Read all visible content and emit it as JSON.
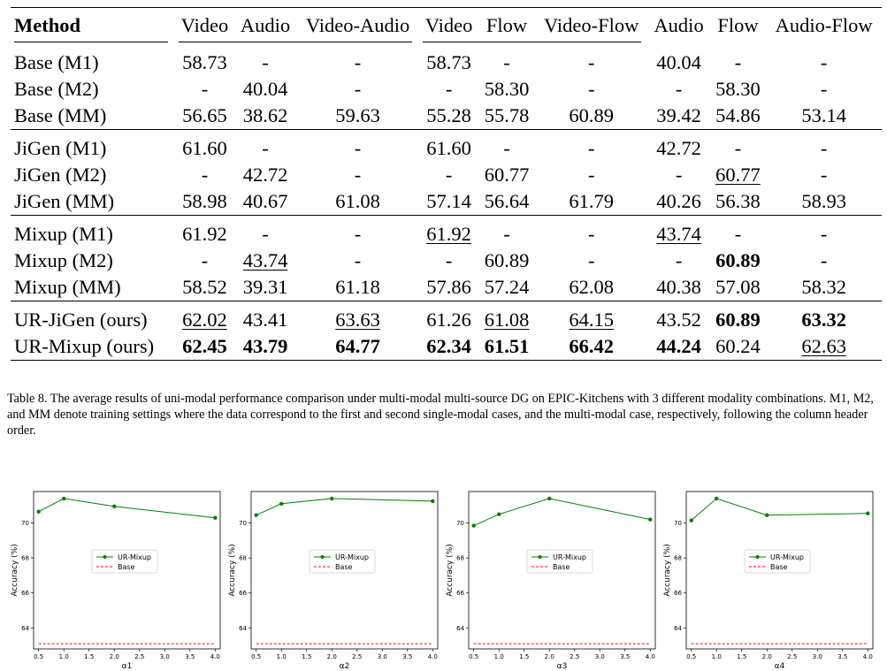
{
  "table": {
    "headers": [
      "Method",
      "Video",
      "Audio",
      "Video-Audio",
      "Video",
      "Flow",
      "Video-Flow",
      "Audio",
      "Flow",
      "Audio-Flow"
    ],
    "groups": [
      [
        {
          "method": "Base (M1)",
          "cells": [
            [
              "58.73",
              ""
            ],
            [
              "-",
              ""
            ],
            [
              "-",
              ""
            ],
            [
              "58.73",
              ""
            ],
            [
              "-",
              ""
            ],
            [
              "-",
              ""
            ],
            [
              "40.04",
              ""
            ],
            [
              "-",
              ""
            ],
            [
              "-",
              ""
            ]
          ]
        },
        {
          "method": "Base (M2)",
          "cells": [
            [
              "-",
              ""
            ],
            [
              "40.04",
              ""
            ],
            [
              "-",
              ""
            ],
            [
              "-",
              ""
            ],
            [
              "58.30",
              ""
            ],
            [
              "-",
              ""
            ],
            [
              "-",
              ""
            ],
            [
              "58.30",
              ""
            ],
            [
              "-",
              ""
            ]
          ]
        },
        {
          "method": "Base (MM)",
          "cells": [
            [
              "56.65",
              ""
            ],
            [
              "38.62",
              ""
            ],
            [
              "59.63",
              ""
            ],
            [
              "55.28",
              ""
            ],
            [
              "55.78",
              ""
            ],
            [
              "60.89",
              ""
            ],
            [
              "39.42",
              ""
            ],
            [
              "54.86",
              ""
            ],
            [
              "53.14",
              ""
            ]
          ]
        }
      ],
      [
        {
          "method": "JiGen (M1)",
          "cells": [
            [
              "61.60",
              ""
            ],
            [
              "-",
              ""
            ],
            [
              "-",
              ""
            ],
            [
              "61.60",
              ""
            ],
            [
              "-",
              ""
            ],
            [
              "-",
              ""
            ],
            [
              "42.72",
              ""
            ],
            [
              "-",
              ""
            ],
            [
              "-",
              ""
            ]
          ]
        },
        {
          "method": "JiGen (M2)",
          "cells": [
            [
              "-",
              ""
            ],
            [
              "42.72",
              ""
            ],
            [
              "-",
              ""
            ],
            [
              "-",
              ""
            ],
            [
              "60.77",
              ""
            ],
            [
              "-",
              ""
            ],
            [
              "-",
              ""
            ],
            [
              "60.77",
              "u"
            ],
            [
              "-",
              ""
            ]
          ]
        },
        {
          "method": "JiGen (MM)",
          "cells": [
            [
              "58.98",
              ""
            ],
            [
              "40.67",
              ""
            ],
            [
              "61.08",
              ""
            ],
            [
              "57.14",
              ""
            ],
            [
              "56.64",
              ""
            ],
            [
              "61.79",
              ""
            ],
            [
              "40.26",
              ""
            ],
            [
              "56.38",
              ""
            ],
            [
              "58.93",
              ""
            ]
          ]
        }
      ],
      [
        {
          "method": "Mixup (M1)",
          "cells": [
            [
              "61.92",
              ""
            ],
            [
              "-",
              ""
            ],
            [
              "-",
              ""
            ],
            [
              "61.92",
              "u"
            ],
            [
              "-",
              ""
            ],
            [
              "-",
              ""
            ],
            [
              "43.74",
              "u"
            ],
            [
              "-",
              ""
            ],
            [
              "-",
              ""
            ]
          ]
        },
        {
          "method": "Mixup (M2)",
          "cells": [
            [
              "-",
              ""
            ],
            [
              "43.74",
              "u"
            ],
            [
              "-",
              ""
            ],
            [
              "-",
              ""
            ],
            [
              "60.89",
              ""
            ],
            [
              "-",
              ""
            ],
            [
              "-",
              ""
            ],
            [
              "60.89",
              "b"
            ],
            [
              "-",
              ""
            ]
          ]
        },
        {
          "method": "Mixup (MM)",
          "cells": [
            [
              "58.52",
              ""
            ],
            [
              "39.31",
              ""
            ],
            [
              "61.18",
              ""
            ],
            [
              "57.86",
              ""
            ],
            [
              "57.24",
              ""
            ],
            [
              "62.08",
              ""
            ],
            [
              "40.38",
              ""
            ],
            [
              "57.08",
              ""
            ],
            [
              "58.32",
              ""
            ]
          ]
        }
      ],
      [
        {
          "method": "UR-JiGen (ours)",
          "cells": [
            [
              "62.02",
              "u"
            ],
            [
              "43.41",
              ""
            ],
            [
              "63.63",
              "u"
            ],
            [
              "61.26",
              ""
            ],
            [
              "61.08",
              "u"
            ],
            [
              "64.15",
              "u"
            ],
            [
              "43.52",
              ""
            ],
            [
              "60.89",
              "b"
            ],
            [
              "63.32",
              "b"
            ]
          ]
        },
        {
          "method": "UR-Mixup (ours)",
          "cells": [
            [
              "62.45",
              "b"
            ],
            [
              "43.79",
              "b"
            ],
            [
              "64.77",
              "b"
            ],
            [
              "62.34",
              "b"
            ],
            [
              "61.51",
              "b"
            ],
            [
              "66.42",
              "b"
            ],
            [
              "44.24",
              "b"
            ],
            [
              "60.24",
              ""
            ],
            [
              "62.63",
              "u"
            ]
          ]
        }
      ]
    ]
  },
  "caption": "Table 8. The average results of uni-modal performance comparison under multi-modal multi-source DG on EPIC-Kitchens with 3 different modality combinations. M1, M2, and MM denote training settings where the data correspond to the first and second single-modal cases, and the multi-modal case, respectively, following the column header order.",
  "chart_data": [
    {
      "type": "line",
      "xlabel": "α1",
      "ylabel": "Accuracy (%)",
      "xlim": [
        0.4,
        4.1
      ],
      "ylim": [
        62.8,
        71.8
      ],
      "xticks": [
        0.5,
        1.0,
        1.5,
        2.0,
        2.5,
        3.0,
        3.5,
        4.0
      ],
      "yticks": [
        64,
        66,
        68,
        70
      ],
      "series": [
        {
          "name": "UR-Mixup",
          "color": "#008000",
          "x": [
            0.5,
            1.0,
            2.0,
            4.0
          ],
          "y": [
            70.65,
            71.4,
            70.95,
            70.3
          ]
        },
        {
          "name": "Base",
          "color": "#ff0000",
          "dashed": true,
          "x": [
            0.5,
            4.0
          ],
          "y": [
            63.1,
            63.1
          ]
        }
      ],
      "legend": "center"
    },
    {
      "type": "line",
      "xlabel": "α2",
      "ylabel": "Accuracy (%)",
      "xlim": [
        0.4,
        4.1
      ],
      "ylim": [
        62.8,
        71.8
      ],
      "xticks": [
        0.5,
        1.0,
        1.5,
        2.0,
        2.5,
        3.0,
        3.5,
        4.0
      ],
      "yticks": [
        64,
        66,
        68,
        70
      ],
      "series": [
        {
          "name": "UR-Mixup",
          "color": "#008000",
          "x": [
            0.5,
            1.0,
            2.0,
            4.0
          ],
          "y": [
            70.45,
            71.1,
            71.4,
            71.25
          ]
        },
        {
          "name": "Base",
          "color": "#ff0000",
          "dashed": true,
          "x": [
            0.5,
            4.0
          ],
          "y": [
            63.1,
            63.1
          ]
        }
      ],
      "legend": "center"
    },
    {
      "type": "line",
      "xlabel": "α3",
      "ylabel": "Accuracy (%)",
      "xlim": [
        0.4,
        4.1
      ],
      "ylim": [
        62.8,
        71.8
      ],
      "xticks": [
        0.5,
        1.0,
        1.5,
        2.0,
        2.5,
        3.0,
        3.5,
        4.0
      ],
      "yticks": [
        64,
        66,
        68,
        70
      ],
      "series": [
        {
          "name": "UR-Mixup",
          "color": "#008000",
          "x": [
            0.5,
            1.0,
            2.0,
            4.0
          ],
          "y": [
            69.85,
            70.5,
            71.4,
            70.2
          ]
        },
        {
          "name": "Base",
          "color": "#ff0000",
          "dashed": true,
          "x": [
            0.5,
            4.0
          ],
          "y": [
            63.1,
            63.1
          ]
        }
      ],
      "legend": "center"
    },
    {
      "type": "line",
      "xlabel": "α4",
      "ylabel": "Accuracy (%)",
      "xlim": [
        0.4,
        4.1
      ],
      "ylim": [
        62.8,
        71.8
      ],
      "xticks": [
        0.5,
        1.0,
        1.5,
        2.0,
        2.5,
        3.0,
        3.5,
        4.0
      ],
      "yticks": [
        64,
        66,
        68,
        70
      ],
      "series": [
        {
          "name": "UR-Mixup",
          "color": "#008000",
          "x": [
            0.5,
            1.0,
            2.0,
            4.0
          ],
          "y": [
            70.15,
            71.4,
            70.45,
            70.55
          ]
        },
        {
          "name": "Base",
          "color": "#ff0000",
          "dashed": true,
          "x": [
            0.5,
            4.0
          ],
          "y": [
            63.1,
            63.1
          ]
        }
      ],
      "legend": "center"
    }
  ]
}
